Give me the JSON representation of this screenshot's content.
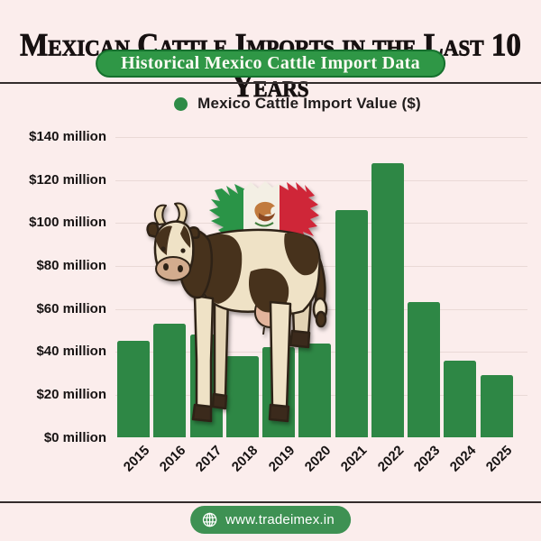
{
  "header": {
    "title": "Mexican Cattle Imports in the Last 10 Years",
    "subtitle": "Historical Mexico Cattle Import Data"
  },
  "legend": {
    "label": "Mexico Cattle Import Value ($)",
    "marker_color": "#2e8b47"
  },
  "chart_data": {
    "type": "bar",
    "title": "Mexico Cattle Import Value ($)",
    "categories": [
      "2015",
      "2016",
      "2017",
      "2018",
      "2019",
      "2020",
      "2021",
      "2022",
      "2023",
      "2024",
      "2025"
    ],
    "values": [
      45,
      53,
      48,
      38,
      42,
      44,
      106,
      128,
      63,
      36,
      29
    ],
    "unit": "USD million",
    "xlabel": "",
    "ylabel": "",
    "ylim": [
      0,
      140
    ],
    "ytick_step": 20,
    "ytick_labels": [
      "$0 million",
      "$20 million",
      "$40 million",
      "$60 million",
      "$80 million",
      "$100 million",
      "$120 million",
      "$140 million"
    ],
    "grid": true,
    "legend_position": "top",
    "bar_color": "#2e8745"
  },
  "illustration": {
    "description": "cartoon Holstein cow with torn Mexican flag above its back"
  },
  "footer": {
    "website": "www.tradeimex.in"
  },
  "icons": {
    "legend_marker": "filled-circle",
    "footer_icon": "globe"
  },
  "colors": {
    "background": "#fbedec",
    "bar": "#2e8745",
    "subtitle_pill": "#2f9746",
    "footer_pill": "#3e9153",
    "text": "#1c1717",
    "gridline": "#e9d9d6",
    "flag_green": "#2a9447",
    "flag_red": "#cf2839"
  }
}
